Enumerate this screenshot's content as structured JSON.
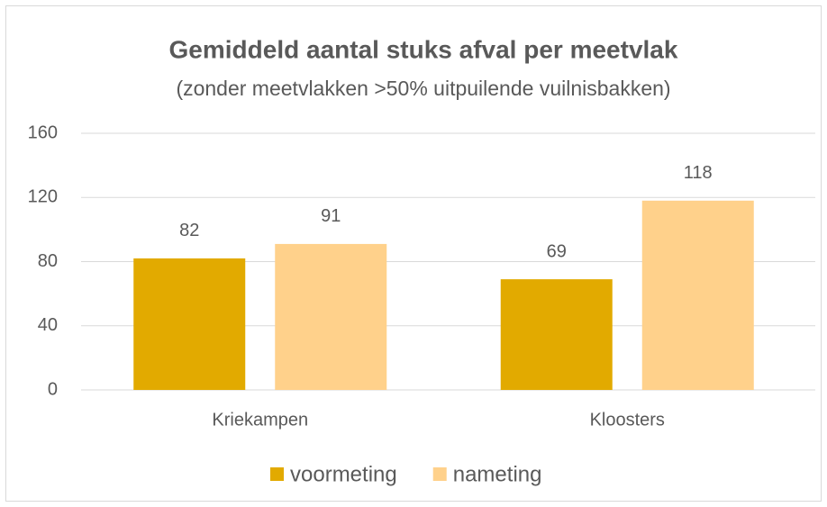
{
  "chart_data": {
    "type": "bar",
    "title": "Gemiddeld aantal stuks afval per meetvlak",
    "subtitle": "(zonder meetvlakken >50% uitpuilende vuilnisbakken)",
    "categories": [
      "Kriekampen",
      "Kloosters"
    ],
    "series": [
      {
        "name": "voormeting",
        "color": "#e2aa00",
        "values": [
          82,
          69
        ]
      },
      {
        "name": "nameting",
        "color": "#ffd18b",
        "values": [
          91,
          118
        ]
      }
    ],
    "ylim": [
      0,
      160
    ],
    "yticks": [
      0,
      40,
      80,
      120,
      160
    ],
    "grid": true,
    "legend": "bottom"
  }
}
